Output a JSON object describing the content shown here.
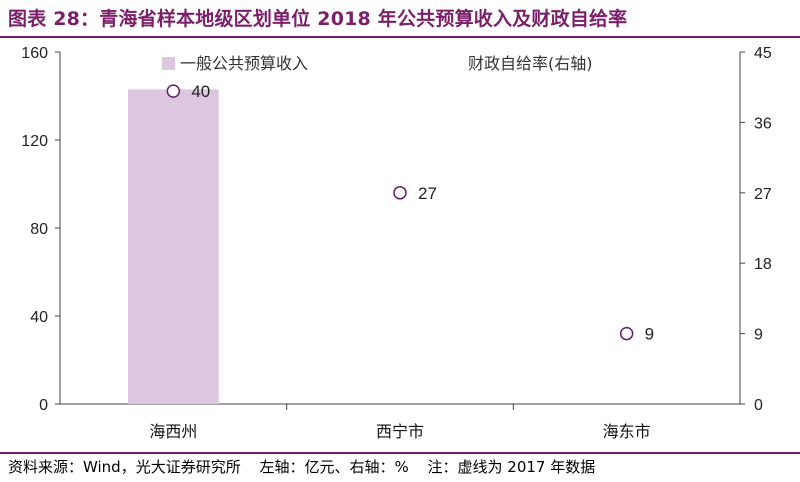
{
  "header": {
    "title": "图表 28：青海省样本地级区划单位 2018 年公共预算收入及财政自给率"
  },
  "footer": {
    "source": "资料来源：Wind，光大证券研究所",
    "axis_note": "左轴：亿元、右轴：%",
    "note": "注：虚线为 2017 年数据"
  },
  "colors": {
    "brand": "#7b1f6a",
    "bar": "#dcc6e0",
    "marker": "#6a1b6e"
  },
  "chart_data": {
    "type": "bar",
    "title": "",
    "categories": [
      "海西州",
      "西宁市",
      "海东市"
    ],
    "series": [
      {
        "name": "一般公共预算收入",
        "type": "bar",
        "axis": "left",
        "values": [
          143,
          0,
          0
        ]
      },
      {
        "name": "财政自给率(右轴)",
        "type": "scatter",
        "axis": "right",
        "values": [
          40,
          27,
          9
        ]
      }
    ],
    "y_left": {
      "min": 0,
      "max": 160,
      "ticks": [
        "0",
        "40",
        "80",
        "120",
        "160"
      ]
    },
    "y_right": {
      "min": 0,
      "max": 45,
      "ticks": [
        "0",
        "9",
        "18",
        "27",
        "36",
        "45"
      ]
    },
    "data_labels": [
      "40",
      "27",
      "9"
    ],
    "legend_position": "top",
    "grid": false
  }
}
